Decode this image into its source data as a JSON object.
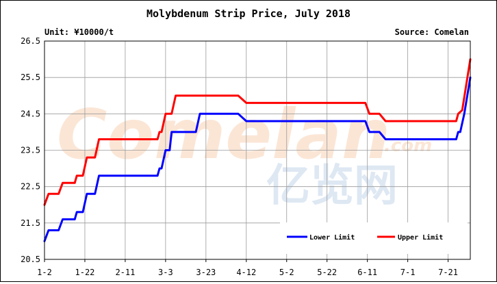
{
  "chart_data": {
    "type": "line",
    "title": "Molybdenum Strip Price, July 2018",
    "unit_label": "Unit: ¥10000/t",
    "source_label": "Source: Comelan",
    "ylim": [
      20.5,
      26.5
    ],
    "yticks": [
      "20.5",
      "21.5",
      "22.5",
      "23.5",
      "24.5",
      "25.5",
      "26.5"
    ],
    "xticks": [
      "1-2",
      "1-22",
      "2-11",
      "3-3",
      "3-23",
      "4-12",
      "5-2",
      "5-22",
      "6-11",
      "7-1",
      "7-21"
    ],
    "grid": true,
    "legend_position": "bottom-right",
    "series": [
      {
        "name": "Lower Limit",
        "color": "#0000ff",
        "points": [
          [
            "2018-01-02",
            21.0
          ],
          [
            "2018-01-04",
            21.3
          ],
          [
            "2018-01-09",
            21.3
          ],
          [
            "2018-01-11",
            21.6
          ],
          [
            "2018-01-17",
            21.6
          ],
          [
            "2018-01-18",
            21.8
          ],
          [
            "2018-01-21",
            21.8
          ],
          [
            "2018-01-23",
            22.3
          ],
          [
            "2018-01-27",
            22.3
          ],
          [
            "2018-01-29",
            22.8
          ],
          [
            "2018-02-27",
            22.8
          ],
          [
            "2018-02-28",
            23.0
          ],
          [
            "2018-03-01",
            23.0
          ],
          [
            "2018-03-03",
            23.5
          ],
          [
            "2018-03-05",
            23.5
          ],
          [
            "2018-03-06",
            24.0
          ],
          [
            "2018-03-18",
            24.0
          ],
          [
            "2018-03-20",
            24.5
          ],
          [
            "2018-04-08",
            24.5
          ],
          [
            "2018-04-12",
            24.3
          ],
          [
            "2018-06-10",
            24.3
          ],
          [
            "2018-06-12",
            24.0
          ],
          [
            "2018-06-17",
            24.0
          ],
          [
            "2018-06-20",
            23.8
          ],
          [
            "2018-07-25",
            23.8
          ],
          [
            "2018-07-26",
            24.0
          ],
          [
            "2018-07-27",
            24.0
          ],
          [
            "2018-07-29",
            24.5
          ],
          [
            "2018-08-01",
            25.5
          ]
        ]
      },
      {
        "name": "Upper Limit",
        "color": "#ff0000",
        "points": [
          [
            "2018-01-02",
            22.0
          ],
          [
            "2018-01-04",
            22.3
          ],
          [
            "2018-01-09",
            22.3
          ],
          [
            "2018-01-11",
            22.6
          ],
          [
            "2018-01-17",
            22.6
          ],
          [
            "2018-01-18",
            22.8
          ],
          [
            "2018-01-21",
            22.8
          ],
          [
            "2018-01-23",
            23.3
          ],
          [
            "2018-01-27",
            23.3
          ],
          [
            "2018-01-29",
            23.8
          ],
          [
            "2018-02-27",
            23.8
          ],
          [
            "2018-02-28",
            24.0
          ],
          [
            "2018-03-01",
            24.0
          ],
          [
            "2018-03-03",
            24.5
          ],
          [
            "2018-03-06",
            24.5
          ],
          [
            "2018-03-08",
            25.0
          ],
          [
            "2018-04-08",
            25.0
          ],
          [
            "2018-04-12",
            24.8
          ],
          [
            "2018-06-10",
            24.8
          ],
          [
            "2018-06-12",
            24.5
          ],
          [
            "2018-06-17",
            24.5
          ],
          [
            "2018-06-20",
            24.3
          ],
          [
            "2018-07-25",
            24.3
          ],
          [
            "2018-07-26",
            24.5
          ],
          [
            "2018-07-28",
            24.6
          ],
          [
            "2018-08-01",
            26.0
          ]
        ]
      }
    ]
  },
  "watermark": {
    "brand_text": "Comelan",
    "domain_text": ".com",
    "chinese_text": "亿览网"
  }
}
